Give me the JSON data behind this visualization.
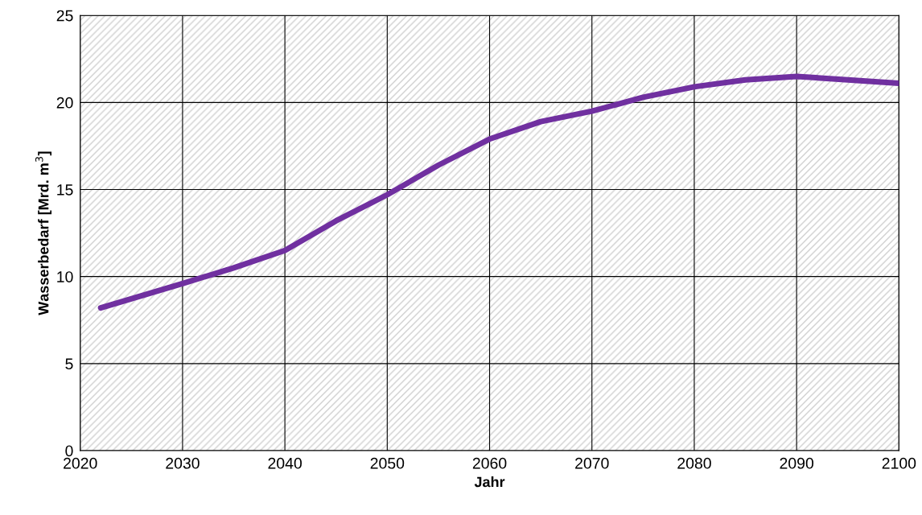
{
  "chart_data": {
    "type": "line",
    "xlabel": "Jahr",
    "ylabel": "Wasserbedarf [Mrd. m$^{3}$]",
    "x": [
      2022,
      2030,
      2035,
      2040,
      2045,
      2050,
      2055,
      2060,
      2065,
      2070,
      2075,
      2080,
      2085,
      2090,
      2095,
      2100
    ],
    "series": [
      {
        "color": "#7030a0",
        "values": [
          8.2,
          9.6,
          10.5,
          11.5,
          13.2,
          14.7,
          16.4,
          17.9,
          18.9,
          19.5,
          20.3,
          20.9,
          21.3,
          21.5,
          21.3,
          21.1
        ]
      }
    ],
    "xlim": [
      2020,
      2100
    ],
    "xticks": [
      2020,
      2030,
      2040,
      2050,
      2060,
      2070,
      2080,
      2090,
      2100
    ],
    "ylim": [
      0,
      25
    ],
    "yticks": [
      0,
      5,
      10,
      15,
      20,
      25
    ],
    "grid": true,
    "marker": "none",
    "line_style": "solid"
  }
}
